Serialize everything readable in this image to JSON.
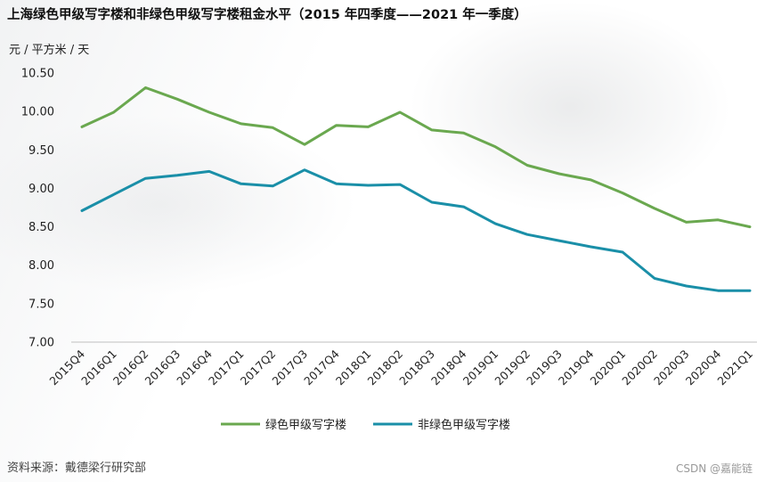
{
  "header": {
    "title": "上海绿色甲级写字楼和非绿色甲级写字楼租金水平（2015 年四季度——2021 年一季度）"
  },
  "footer": {
    "source": "资料来源：戴德梁行研究部",
    "watermark": "CSDN @嘉能链"
  },
  "chart_data": {
    "type": "line",
    "title": "上海绿色甲级写字楼和非绿色甲级写字楼租金水平（2015 年四季度——2021 年一季度）",
    "ylabel": "元 / 平方米 / 天",
    "xlabel": "",
    "ylim": [
      7.0,
      10.5
    ],
    "yticks": [
      "7.00",
      "7.50",
      "8.00",
      "8.50",
      "9.00",
      "9.50",
      "10.00",
      "10.50"
    ],
    "categories": [
      "2015Q4",
      "2016Q1",
      "2016Q2",
      "2016Q3",
      "2016Q4",
      "2017Q1",
      "2017Q2",
      "2017Q3",
      "2017Q4",
      "2018Q1",
      "2018Q2",
      "2018Q3",
      "2018Q4",
      "2019Q1",
      "2019Q2",
      "2019Q3",
      "2019Q4",
      "2020Q1",
      "2020Q2",
      "2020Q3",
      "2020Q4",
      "2021Q1"
    ],
    "series": [
      {
        "name": "绿色甲级写字楼",
        "color": "#6aa84f",
        "values": [
          9.8,
          9.99,
          10.31,
          10.16,
          9.99,
          9.84,
          9.79,
          9.57,
          9.82,
          9.8,
          9.99,
          9.76,
          9.72,
          9.54,
          9.3,
          9.19,
          9.11,
          8.94,
          8.74,
          8.56,
          8.59,
          8.5
        ]
      },
      {
        "name": "非绿色甲级写字楼",
        "color": "#1a8fa8",
        "values": [
          8.71,
          8.92,
          9.13,
          9.17,
          9.22,
          9.06,
          9.03,
          9.24,
          9.06,
          9.04,
          9.05,
          8.82,
          8.76,
          8.54,
          8.4,
          8.32,
          8.24,
          8.17,
          7.83,
          7.73,
          7.67,
          7.67
        ]
      }
    ],
    "legend": "bottom-center",
    "grid": false
  }
}
